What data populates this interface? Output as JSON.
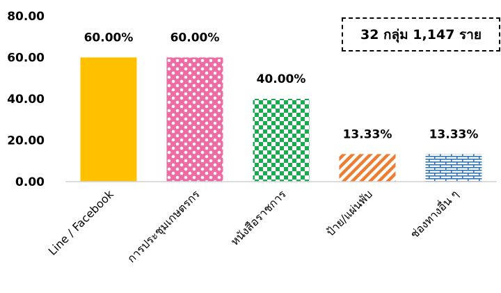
{
  "annotation": "32 กลุ่ม 1,147 ราย",
  "chart_data": {
    "type": "bar",
    "categories": [
      "Line / Facebook",
      "การประชุมเกษตรกร",
      "หนังสือราชการ",
      "ป้าย/แผ่นพับ",
      "ช่องทางอื่น ๆ"
    ],
    "values": [
      60.0,
      60.0,
      40.0,
      13.33,
      13.33
    ],
    "data_labels": [
      "60.00%",
      "60.00%",
      "40.00%",
      "13.33%",
      "13.33%"
    ],
    "y_ticks": [
      "0.00",
      "20.00",
      "40.00",
      "60.00",
      "80.00"
    ],
    "ylim": [
      0,
      80
    ],
    "title": "",
    "xlabel": "",
    "ylabel": "",
    "grid": false,
    "colors": [
      "#FFC000",
      "#F06AA3",
      "#1BAA50",
      "#ED7D31",
      "#2E75B6"
    ],
    "patterns": [
      "solid",
      "circles",
      "checkerboard",
      "diagonal-stripes",
      "bricks"
    ]
  }
}
